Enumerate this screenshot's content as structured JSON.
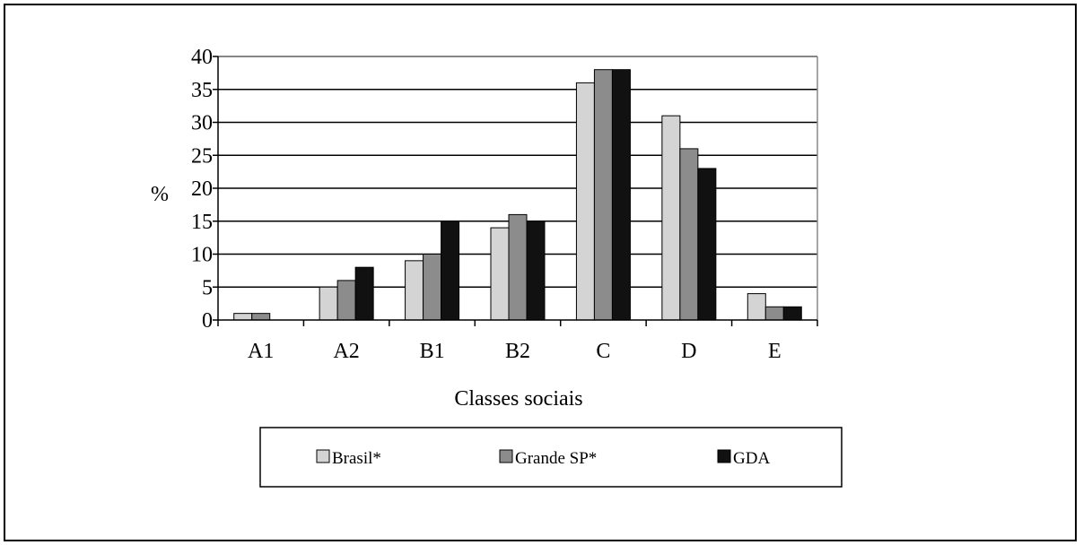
{
  "chart_data": {
    "type": "bar",
    "title": "",
    "xlabel": "Classes sociais",
    "ylabel": "%",
    "ylim": [
      0,
      40
    ],
    "yticks": [
      0,
      5,
      10,
      15,
      20,
      25,
      30,
      35,
      40
    ],
    "grid": true,
    "legend_position": "bottom",
    "categories": [
      "A1",
      "A2",
      "B1",
      "B2",
      "C",
      "D",
      "E"
    ],
    "series": [
      {
        "name": "Brasil*",
        "color": "#d4d4d4",
        "values": [
          1,
          5,
          9,
          14,
          36,
          31,
          4
        ]
      },
      {
        "name": "Grande SP*",
        "color": "#8c8c8c",
        "values": [
          1,
          6,
          10,
          16,
          38,
          26,
          2
        ]
      },
      {
        "name": "GDA",
        "color": "#111111",
        "values": [
          0,
          8,
          15,
          15,
          38,
          23,
          2
        ]
      }
    ]
  }
}
